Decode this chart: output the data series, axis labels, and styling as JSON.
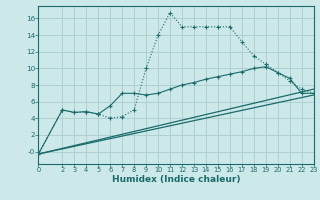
{
  "background_color": "#cce8e8",
  "grid_color": "#aed0d0",
  "line_color": "#1a6b6b",
  "xlim": [
    0,
    23
  ],
  "ylim": [
    -1.5,
    17.5
  ],
  "yticks": [
    0,
    2,
    4,
    6,
    8,
    10,
    12,
    14,
    16
  ],
  "ytick_labels": [
    "-0",
    "2",
    "4",
    "6",
    "8",
    "10",
    "12",
    "14",
    "16"
  ],
  "xticks": [
    0,
    2,
    3,
    4,
    5,
    6,
    7,
    8,
    9,
    10,
    11,
    12,
    13,
    14,
    15,
    16,
    17,
    18,
    19,
    20,
    21,
    22,
    23
  ],
  "xlabel": "Humidex (Indice chaleur)",
  "line1_x": [
    0,
    2,
    3,
    4,
    5,
    6,
    7,
    8,
    9,
    10,
    11,
    12,
    13,
    14,
    15,
    16,
    17,
    18,
    19,
    20,
    21,
    22,
    23
  ],
  "line1_y": [
    -0.3,
    5.0,
    4.7,
    4.8,
    4.5,
    4.0,
    4.2,
    5.0,
    10.0,
    14.0,
    16.7,
    15.0,
    15.0,
    15.0,
    15.0,
    15.0,
    13.2,
    11.5,
    10.5,
    9.5,
    8.5,
    7.5,
    7.0
  ],
  "line2_x": [
    0,
    2,
    3,
    4,
    5,
    6,
    7,
    8,
    9,
    10,
    11,
    12,
    13,
    14,
    15,
    16,
    17,
    18,
    19,
    20,
    21,
    22,
    23
  ],
  "line2_y": [
    -0.3,
    5.0,
    4.7,
    4.8,
    4.5,
    5.5,
    7.0,
    7.0,
    6.8,
    7.0,
    7.5,
    8.0,
    8.3,
    8.7,
    9.0,
    9.3,
    9.6,
    10.0,
    10.2,
    9.5,
    8.8,
    7.0,
    7.0
  ],
  "line3_x": [
    0,
    23
  ],
  "line3_y": [
    -0.3,
    6.8
  ],
  "line4_x": [
    0,
    23
  ],
  "line4_y": [
    -0.3,
    7.5
  ]
}
